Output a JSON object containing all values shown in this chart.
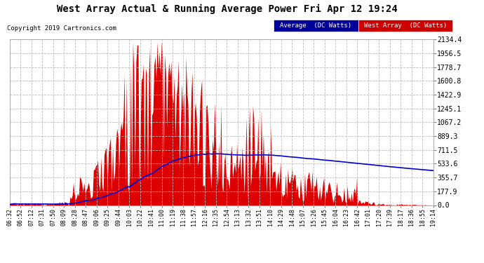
{
  "title": "West Array Actual & Running Average Power Fri Apr 12 19:24",
  "copyright": "Copyright 2019 Cartronics.com",
  "legend_labels": [
    "Average  (DC Watts)",
    "West Array  (DC Watts)"
  ],
  "avg_legend_bg": "#000099",
  "west_legend_bg": "#cc0000",
  "yticks": [
    0.0,
    177.9,
    355.7,
    533.6,
    711.5,
    889.3,
    1067.2,
    1245.1,
    1422.9,
    1600.8,
    1778.7,
    1956.5,
    2134.4
  ],
  "ymin": 0.0,
  "ymax": 2134.4,
  "fig_bg": "#ffffff",
  "plot_bg": "#ffffff",
  "bar_color": "#dd0000",
  "avg_color": "#0000cc",
  "grid_color": "#bbbbbb",
  "title_color": "#000000",
  "xtick_labels": [
    "06:32",
    "06:52",
    "07:12",
    "07:31",
    "07:50",
    "08:09",
    "08:28",
    "08:47",
    "09:06",
    "09:25",
    "09:44",
    "10:03",
    "10:22",
    "10:41",
    "11:00",
    "11:19",
    "11:38",
    "11:57",
    "12:16",
    "12:35",
    "12:54",
    "13:13",
    "13:32",
    "13:51",
    "14:10",
    "14:29",
    "14:48",
    "15:07",
    "15:26",
    "15:45",
    "16:04",
    "16:23",
    "16:42",
    "17:01",
    "17:20",
    "17:39",
    "18:17",
    "18:36",
    "18:55",
    "19:14"
  ]
}
